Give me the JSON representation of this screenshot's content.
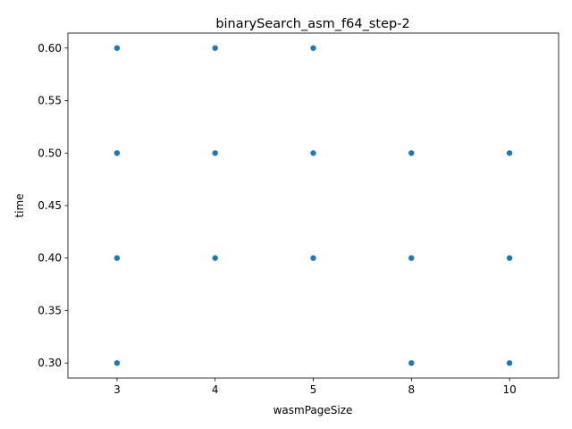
{
  "chart_data": {
    "type": "scatter",
    "title": "binarySearch_asm_f64_step-2",
    "xlabel": "wasmPageSize",
    "ylabel": "time",
    "categories": [
      "3",
      "4",
      "5",
      "8",
      "10"
    ],
    "ylim": [
      0.2857,
      0.6143
    ],
    "yticks": [
      "0.30",
      "0.35",
      "0.40",
      "0.45",
      "0.50",
      "0.55",
      "0.60"
    ],
    "marker_color": "#1f77b4",
    "grid": false,
    "series": [
      {
        "points": [
          {
            "x": "3",
            "y": 0.6
          },
          {
            "x": "3",
            "y": 0.5
          },
          {
            "x": "3",
            "y": 0.4
          },
          {
            "x": "3",
            "y": 0.3
          },
          {
            "x": "4",
            "y": 0.6
          },
          {
            "x": "4",
            "y": 0.5
          },
          {
            "x": "4",
            "y": 0.4
          },
          {
            "x": "5",
            "y": 0.6
          },
          {
            "x": "5",
            "y": 0.5
          },
          {
            "x": "5",
            "y": 0.4
          },
          {
            "x": "8",
            "y": 0.5
          },
          {
            "x": "8",
            "y": 0.4
          },
          {
            "x": "8",
            "y": 0.3
          },
          {
            "x": "10",
            "y": 0.5
          },
          {
            "x": "10",
            "y": 0.4
          },
          {
            "x": "10",
            "y": 0.3
          }
        ]
      }
    ]
  }
}
